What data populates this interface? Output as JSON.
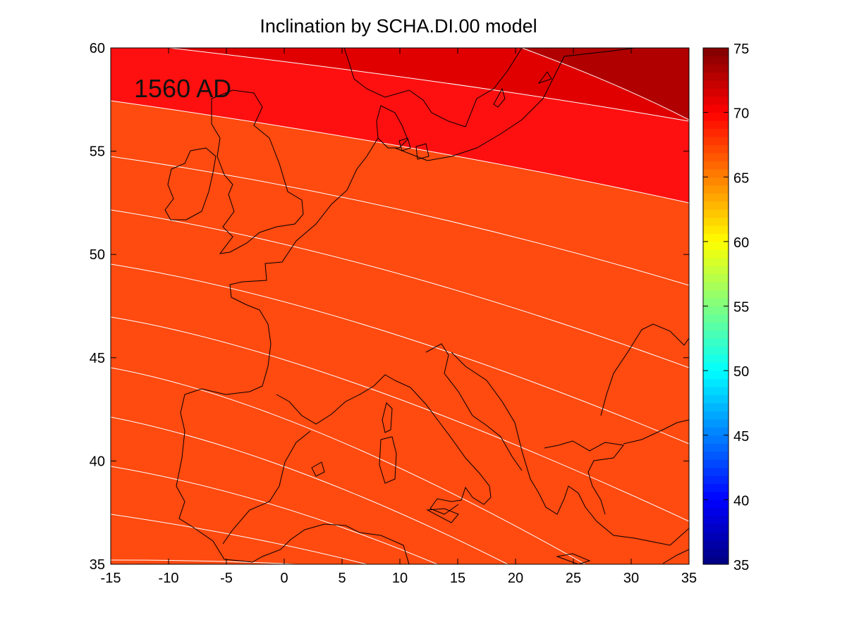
{
  "figure": {
    "title": "Inclination by SCHA.DI.00 model",
    "epoch_label": "1560 AD"
  },
  "map": {
    "x_range": [
      -15,
      35
    ],
    "y_range": [
      35,
      60
    ],
    "x_ticks": [
      "-15",
      "-10",
      "-5",
      "0",
      "5",
      "10",
      "15",
      "20",
      "25",
      "30",
      "35"
    ],
    "y_ticks": [
      "60",
      "55",
      "50",
      "45",
      "40",
      "35"
    ],
    "contour_levels_deg": [
      50,
      52,
      54,
      56,
      58,
      60,
      62,
      64,
      66,
      68,
      70,
      72,
      74
    ],
    "coastlines": "Europe"
  },
  "colorbar": {
    "range": [
      35,
      75
    ],
    "colormap": "jet",
    "tick_labels": [
      "75",
      "70",
      "65",
      "60",
      "55",
      "50",
      "45",
      "40",
      "35"
    ]
  }
}
